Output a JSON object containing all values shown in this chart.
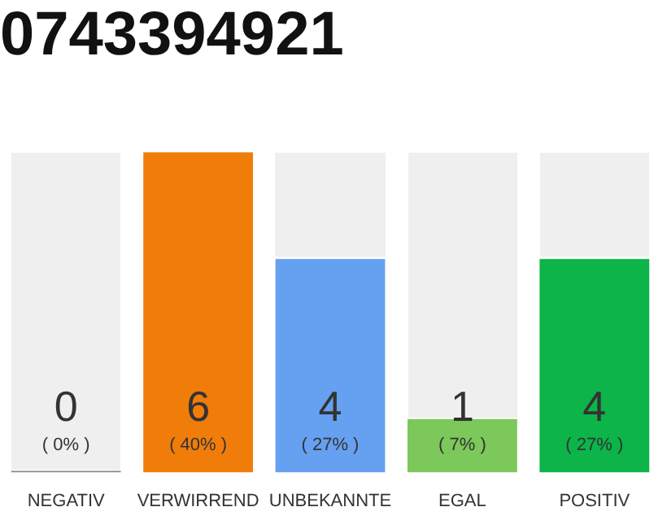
{
  "chart_data": {
    "type": "bar",
    "title": "0743394921",
    "categories": [
      "NEGATIV",
      "VERWIRREND",
      "UNBEKANNTE",
      "EGAL",
      "POSITIV"
    ],
    "values": [
      0,
      6,
      4,
      1,
      4
    ],
    "colors": [
      "#888888",
      "#f07d0a",
      "#66a0f0",
      "#7cc85a",
      "#0cb44a"
    ],
    "value_labels": [
      "0\n( 0% )",
      "6\n( 40% )",
      "4\n( 27% )",
      "1\n( 7% )",
      "4\n( 27% )"
    ],
    "legend": false,
    "grid": false
  }
}
